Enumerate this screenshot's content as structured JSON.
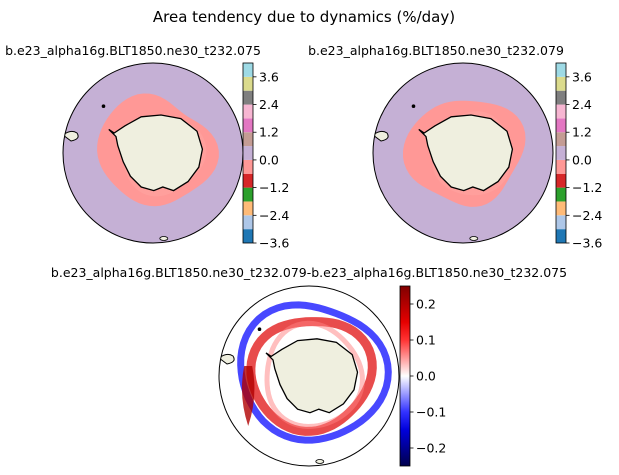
{
  "figure": {
    "suptitle": "Area tendency due to dynamics (%/day)"
  },
  "chart_data": [
    {
      "type": "heatmap",
      "projection": "south-polar-stereographic",
      "title": "b.e23_alpha16g.BLT1850.ne30_t232.075",
      "colorbar": {
        "ticks": [
          -3.6,
          -2.4,
          -1.2,
          0.0,
          1.2,
          2.4,
          3.6
        ],
        "tick_labels": [
          "−3.6",
          "−2.4",
          "−1.2",
          "0.0",
          "1.2",
          "2.4",
          "3.6"
        ],
        "boundaries": [
          -3.6,
          -3.0,
          -2.4,
          -1.8,
          -1.2,
          -0.6,
          0.0,
          0.6,
          1.2,
          1.8,
          2.4,
          3.0,
          3.6,
          4.2
        ],
        "colors": [
          "#1f77b4",
          "#aec7e8",
          "#ffbb78",
          "#2ca02c",
          "#d62728",
          "#ff9896",
          "#c5b0d5",
          "#c49c94",
          "#e377c2",
          "#f7b6d2",
          "#7f7f7f",
          "#dbdb8d",
          "#9edae5"
        ]
      }
    },
    {
      "type": "heatmap",
      "projection": "south-polar-stereographic",
      "title": "b.e23_alpha16g.BLT1850.ne30_t232.079",
      "colorbar": {
        "ticks": [
          -3.6,
          -2.4,
          -1.2,
          0.0,
          1.2,
          2.4,
          3.6
        ],
        "tick_labels": [
          "−3.6",
          "−2.4",
          "−1.2",
          "0.0",
          "1.2",
          "2.4",
          "3.6"
        ],
        "boundaries": [
          -3.6,
          -3.0,
          -2.4,
          -1.8,
          -1.2,
          -0.6,
          0.0,
          0.6,
          1.2,
          1.8,
          2.4,
          3.0,
          3.6,
          4.2
        ],
        "colors": [
          "#1f77b4",
          "#aec7e8",
          "#ffbb78",
          "#2ca02c",
          "#d62728",
          "#ff9896",
          "#c5b0d5",
          "#c49c94",
          "#e377c2",
          "#f7b6d2",
          "#7f7f7f",
          "#dbdb8d",
          "#9edae5"
        ]
      }
    },
    {
      "type": "heatmap",
      "projection": "south-polar-stereographic",
      "title": "b.e23_alpha16g.BLT1850.ne30_t232.079-b.e23_alpha16g.BLT1850.ne30_t232.075",
      "colorbar": {
        "colormap": "seismic",
        "range": [
          -0.25,
          0.25
        ],
        "ticks": [
          -0.2,
          -0.1,
          0.0,
          0.1,
          0.2
        ],
        "tick_labels": [
          "−0.2",
          "−0.1",
          "0.0",
          "0.1",
          "0.2"
        ]
      }
    }
  ],
  "colors": {
    "ocean_background": "#c5b0d5",
    "land": "#efefdf",
    "ice_edge_tendency": "#ff9896",
    "ice_interior": "#c5b0d5"
  }
}
